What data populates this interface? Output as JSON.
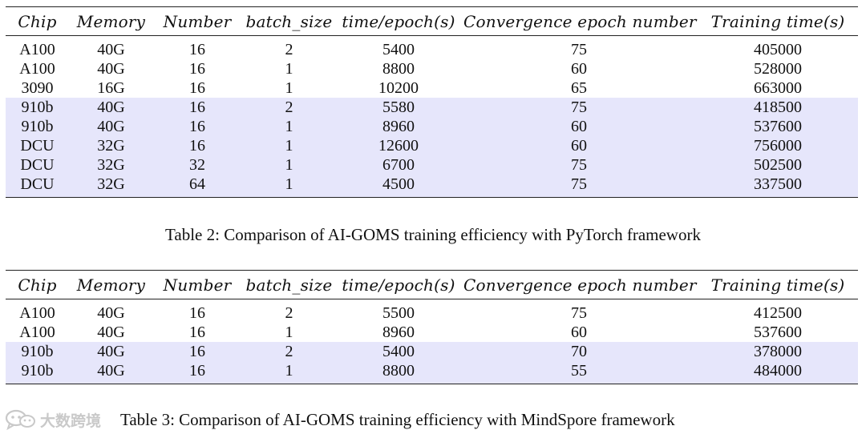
{
  "headers": [
    "Chip",
    "Memory",
    "Number",
    "batch_size",
    "time/epoch(s)",
    "Convergence epoch number",
    "Training time(s)"
  ],
  "table1": {
    "rows": [
      {
        "cells": [
          "A100",
          "40G",
          "16",
          "2",
          "5400",
          "75",
          "405000"
        ],
        "shaded": false
      },
      {
        "cells": [
          "A100",
          "40G",
          "16",
          "1",
          "8800",
          "60",
          "528000"
        ],
        "shaded": false
      },
      {
        "cells": [
          "3090",
          "16G",
          "16",
          "1",
          "10200",
          "65",
          "663000"
        ],
        "shaded": false
      },
      {
        "cells": [
          "910b",
          "40G",
          "16",
          "2",
          "5580",
          "75",
          "418500"
        ],
        "shaded": true
      },
      {
        "cells": [
          "910b",
          "40G",
          "16",
          "1",
          "8960",
          "60",
          "537600"
        ],
        "shaded": true
      },
      {
        "cells": [
          "DCU",
          "32G",
          "16",
          "1",
          "12600",
          "60",
          "756000"
        ],
        "shaded": true
      },
      {
        "cells": [
          "DCU",
          "32G",
          "32",
          "1",
          "6700",
          "75",
          "502500"
        ],
        "shaded": true
      },
      {
        "cells": [
          "DCU",
          "32G",
          "64",
          "1",
          "4500",
          "75",
          "337500"
        ],
        "shaded": true
      }
    ],
    "caption": "Table 2: Comparison of AI-GOMS training efficiency with PyTorch framework"
  },
  "table2": {
    "rows": [
      {
        "cells": [
          "A100",
          "40G",
          "16",
          "2",
          "5500",
          "75",
          "412500"
        ],
        "shaded": false
      },
      {
        "cells": [
          "A100",
          "40G",
          "16",
          "1",
          "8960",
          "60",
          "537600"
        ],
        "shaded": false
      },
      {
        "cells": [
          "910b",
          "40G",
          "16",
          "2",
          "5400",
          "70",
          "378000"
        ],
        "shaded": true
      },
      {
        "cells": [
          "910b",
          "40G",
          "16",
          "1",
          "8800",
          "55",
          "484000"
        ],
        "shaded": true
      }
    ],
    "caption": "Table 3: Comparison of AI-GOMS training efficiency with MindSpore framework"
  },
  "watermark": {
    "text": "大数跨境",
    "icon": "wechat-logo-icon"
  },
  "colors": {
    "row_shade": "#e6e6fb",
    "rule": "#222222",
    "watermark": "#c9c9c9"
  }
}
